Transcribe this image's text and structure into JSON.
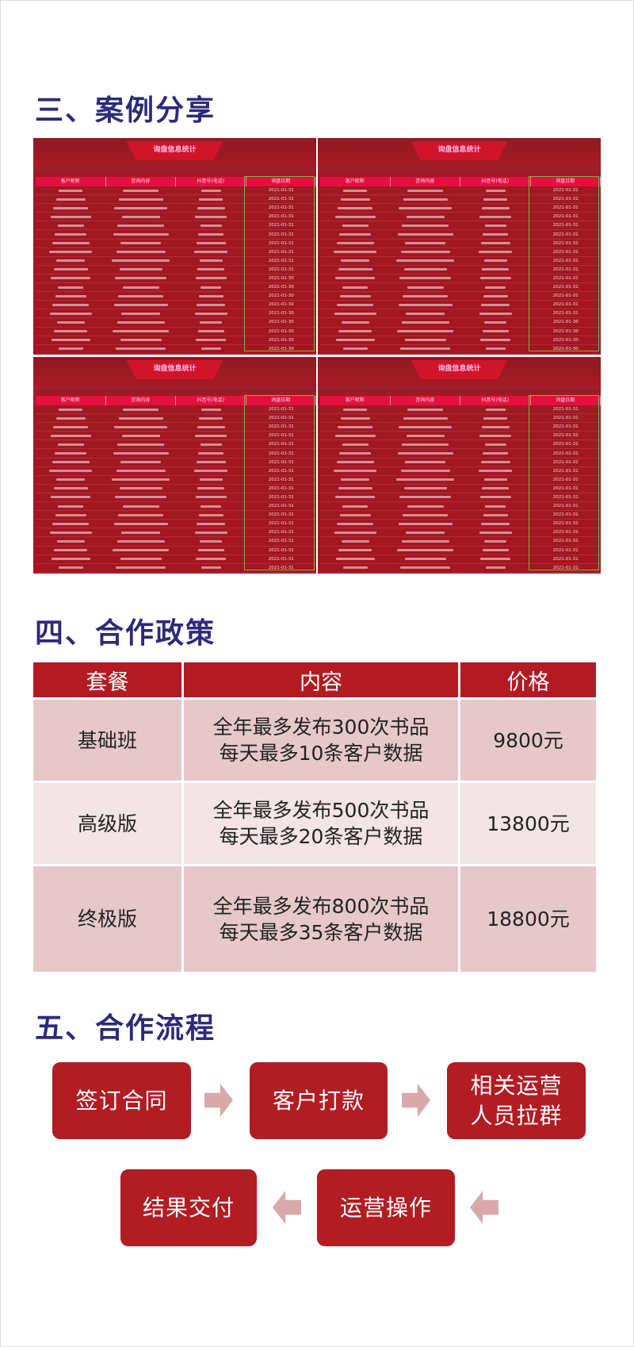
{
  "section3": {
    "title": "三、案例分享",
    "shots": [
      {
        "banner": "询盘信息统计",
        "headers": [
          "客户昵称",
          "咨询内容",
          "抖音号(电话)",
          "询盘日期"
        ],
        "dates": [
          "2021-01-31",
          "2021-01-31",
          "2021-01-31",
          "2021-01-31",
          "2021-01-31",
          "2021-01-31",
          "2021-01-31",
          "2021-01-31",
          "2021-01-31",
          "2021-01-31",
          "2021-01-30",
          "2021-01-30",
          "2021-01-30",
          "2021-01-30",
          "2021-01-30",
          "2021-01-30",
          "2021-01-30",
          "2021-01-30",
          "2021-01-30"
        ]
      },
      {
        "banner": "询盘信息统计",
        "headers": [
          "客户昵称",
          "咨询内容",
          "抖音号(电话)",
          "询盘日期"
        ],
        "dates": [
          "2021-01-31",
          "2021-01-31",
          "2021-01-31",
          "2021-01-31",
          "2021-01-31",
          "2021-01-31",
          "2021-01-31",
          "2021-01-31",
          "2021-01-31",
          "2021-01-31",
          "2021-01-31",
          "2021-01-31",
          "2021-01-31",
          "2021-01-31",
          "2021-01-31",
          "2021-01-30",
          "2021-01-30",
          "2021-01-30",
          "2021-01-30"
        ]
      },
      {
        "banner": "询盘信息统计",
        "headers": [
          "客户昵称",
          "咨询内容",
          "抖音号(电话)",
          "询盘日期"
        ],
        "dates": [
          "2021-01-31",
          "2021-01-31",
          "2021-01-31",
          "2021-01-31",
          "2021-01-31",
          "2021-01-31",
          "2021-01-31",
          "2021-01-31",
          "2021-01-31",
          "2021-01-31",
          "2021-01-31",
          "2021-01-31",
          "2021-01-31",
          "2021-01-31",
          "2021-01-31",
          "2021-01-31",
          "2021-01-31",
          "2021-01-31",
          "2021-01-31"
        ]
      },
      {
        "banner": "询盘信息统计",
        "headers": [
          "客户昵称",
          "咨询内容",
          "抖音号(电话)",
          "询盘日期"
        ],
        "dates": [
          "2021-01-31",
          "2021-01-31",
          "2021-01-31",
          "2021-01-31",
          "2021-01-31",
          "2021-01-31",
          "2021-01-31",
          "2021-01-31",
          "2021-01-31",
          "2021-01-31",
          "2021-01-31",
          "2021-01-31",
          "2021-01-31",
          "2021-01-31",
          "2021-01-31",
          "2021-01-31",
          "2021-01-31",
          "2021-01-31",
          "2021-01-31",
          "2021-01-31"
        ]
      }
    ]
  },
  "section4": {
    "title": "四、合作政策",
    "headers": [
      "套餐",
      "内容",
      "价格"
    ],
    "rows": [
      {
        "plan": "基础班",
        "line1": "全年最多发布300次书品",
        "line2": "每天最多10条客户数据",
        "price": "9800元"
      },
      {
        "plan": "高级版",
        "line1": "全年最多发布500次书品",
        "line2": "每天最多20条客户数据",
        "price": "13800元"
      },
      {
        "plan": "终极版",
        "line1": "全年最多发布800次书品",
        "line2": "每天最多35条客户数据",
        "price": "18800元"
      }
    ]
  },
  "section5": {
    "title": "五、合作流程",
    "steps": [
      "签订合同",
      "客户打款",
      "相关运营人员拉群",
      "运营操作",
      "结果交付"
    ],
    "step3_lines": [
      "相关运营",
      "人员拉群"
    ]
  },
  "colors": {
    "title": "#2b2a7c",
    "red": "#b21b24",
    "arrow": "#d8a8aa"
  }
}
